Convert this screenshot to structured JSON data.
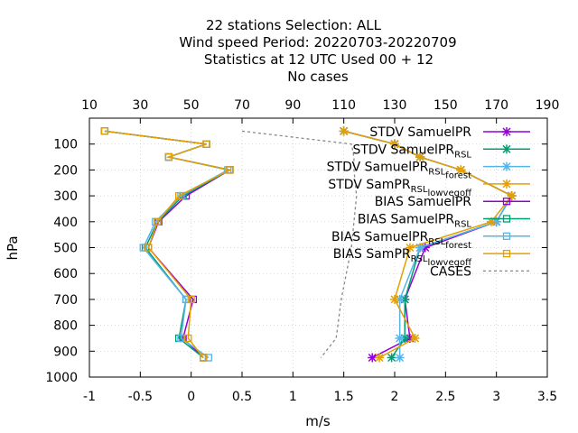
{
  "chart_data": {
    "type": "line",
    "title_lines": [
      "22 stations Selection: ALL",
      "Wind speed  Period: 20220703-20220709",
      "Statistics at 12 UTC  Used  00 + 12",
      "No cases"
    ],
    "xlabel": "m/s",
    "ylabel": "hPa",
    "xlim": [
      -1,
      3.5
    ],
    "ylim": [
      1000,
      0
    ],
    "x2lim": [
      10,
      190
    ],
    "x_ticks": [
      "-1",
      "-0.5",
      "0",
      "0.5",
      "1",
      "1.5",
      "2",
      "2.5",
      "3",
      "3.5"
    ],
    "x2_ticks": [
      "10",
      "30",
      "50",
      "70",
      "90",
      "110",
      "130",
      "150",
      "170",
      "190"
    ],
    "y_ticks": [
      "100",
      "200",
      "300",
      "400",
      "500",
      "600",
      "700",
      "800",
      "900",
      "1000"
    ],
    "grid": true,
    "legend_position": "top-right",
    "levels": [
      50,
      100,
      150,
      200,
      300,
      400,
      500,
      700,
      850,
      925
    ],
    "series": [
      {
        "name": "STDV SamuelPR",
        "color": "#9400d3",
        "marker": "x",
        "values": [
          1.5,
          2.0,
          2.25,
          2.65,
          3.15,
          3.0,
          2.3,
          2.1,
          2.15,
          1.78
        ]
      },
      {
        "name": "STDV SamuelPR_RSL",
        "color": "#009e73",
        "marker": "x",
        "values": [
          1.5,
          2.0,
          2.25,
          2.65,
          3.15,
          3.0,
          2.25,
          2.1,
          2.1,
          1.97
        ]
      },
      {
        "name": "STDV SamuelPR_RSL_forest",
        "color": "#56b4e9",
        "marker": "x",
        "values": [
          1.5,
          2.0,
          2.25,
          2.65,
          3.15,
          3.0,
          2.25,
          2.05,
          2.05,
          2.05
        ]
      },
      {
        "name": "STDV SamPR_RSL_lowvegoff",
        "color": "#e69f00",
        "marker": "x",
        "values": [
          1.5,
          2.0,
          2.25,
          2.65,
          3.15,
          2.95,
          2.15,
          2.0,
          2.2,
          1.85
        ]
      },
      {
        "name": "BIAS SamuelPR",
        "color": "#9400d3",
        "marker": "square",
        "values": [
          -0.85,
          0.15,
          -0.22,
          0.38,
          -0.05,
          -0.32,
          -0.42,
          0.02,
          -0.08,
          0.12
        ]
      },
      {
        "name": "BIAS SamuelPR_RSL",
        "color": "#009e73",
        "marker": "square",
        "values": [
          -0.85,
          0.15,
          -0.22,
          0.38,
          -0.08,
          -0.33,
          -0.45,
          -0.05,
          -0.12,
          0.12
        ]
      },
      {
        "name": "BIAS SamuelPR_RSL_forest",
        "color": "#56b4e9",
        "marker": "square",
        "values": [
          -0.85,
          0.15,
          -0.22,
          0.36,
          -0.1,
          -0.35,
          -0.47,
          -0.05,
          -0.1,
          0.17
        ]
      },
      {
        "name": "BIAS SamPR_RSL_lowvegoff",
        "color": "#e69f00",
        "marker": "square",
        "values": [
          -0.85,
          0.15,
          -0.22,
          0.38,
          -0.12,
          -0.33,
          -0.42,
          0.0,
          -0.03,
          0.12
        ]
      }
    ],
    "cases": {
      "name": "CASES",
      "color": "#888888",
      "levels": [
        50,
        100,
        150,
        200,
        300,
        400,
        500,
        700,
        850,
        925
      ],
      "values": [
        70,
        113,
        114,
        114,
        115,
        114,
        113,
        109,
        107,
        101
      ]
    }
  }
}
